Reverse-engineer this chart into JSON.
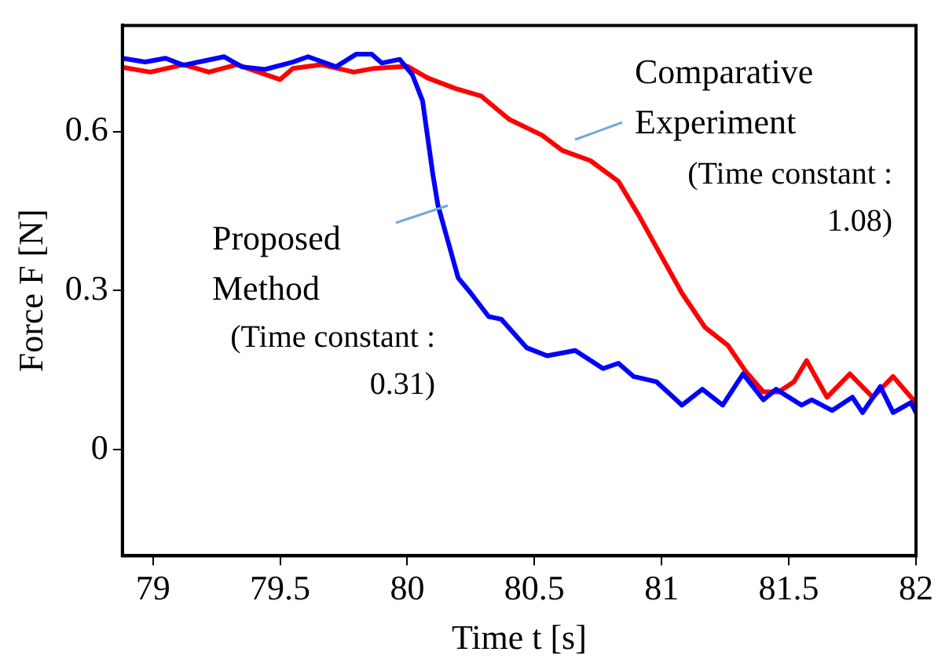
{
  "chart_data": {
    "type": "line",
    "xlabel": "Time t [s]",
    "ylabel": "Force F [N]",
    "xlim": [
      78.88,
      82
    ],
    "xticks": [
      79,
      79.5,
      80,
      80.5,
      81,
      81.5,
      82
    ],
    "ylim": [
      -0.2,
      0.8
    ],
    "yticks": [
      0,
      0.3,
      0.6
    ],
    "grid": false,
    "legend": false,
    "marker": "none",
    "line_style": "solid",
    "annotations": [
      "(Time constant : 0.31)",
      "(Time constant : 1.08)"
    ],
    "series": [
      {
        "name": "Proposed Method",
        "color": "#0000ff",
        "x": [
          78.88,
          78.97,
          79.05,
          79.12,
          79.28,
          79.35,
          79.44,
          79.55,
          79.61,
          79.72,
          79.8,
          79.86,
          79.9,
          79.97,
          80.02,
          80.06,
          80.1,
          80.12,
          80.16,
          80.2,
          80.25,
          80.32,
          80.37,
          80.47,
          80.55,
          80.66,
          80.77,
          80.83,
          80.89,
          80.98,
          81.08,
          81.16,
          81.24,
          81.32,
          81.4,
          81.45,
          81.55,
          81.59,
          81.67,
          81.75,
          81.79,
          81.86,
          81.91,
          81.98,
          82
        ],
        "values": [
          0.738,
          0.731,
          0.738,
          0.725,
          0.741,
          0.722,
          0.717,
          0.731,
          0.741,
          0.722,
          0.746,
          0.746,
          0.729,
          0.736,
          0.707,
          0.658,
          0.521,
          0.462,
          0.393,
          0.324,
          0.295,
          0.251,
          0.246,
          0.192,
          0.177,
          0.187,
          0.153,
          0.163,
          0.138,
          0.128,
          0.084,
          0.114,
          0.084,
          0.143,
          0.094,
          0.114,
          0.084,
          0.094,
          0.074,
          0.099,
          0.07,
          0.119,
          0.07,
          0.089,
          0.07
        ]
      },
      {
        "name": "Comparative Experiment",
        "color": "#ff0000",
        "x": [
          78.88,
          78.99,
          79.12,
          79.22,
          79.33,
          79.5,
          79.55,
          79.66,
          79.79,
          79.87,
          80.0,
          80.08,
          80.19,
          80.29,
          80.4,
          80.53,
          80.61,
          80.72,
          80.83,
          80.91,
          81.0,
          81.08,
          81.17,
          81.26,
          81.33,
          81.4,
          81.46,
          81.52,
          81.57,
          81.65,
          81.74,
          81.83,
          81.91,
          81.98,
          82
        ],
        "values": [
          0.721,
          0.712,
          0.726,
          0.712,
          0.726,
          0.698,
          0.719,
          0.726,
          0.712,
          0.719,
          0.723,
          0.701,
          0.681,
          0.667,
          0.623,
          0.593,
          0.564,
          0.545,
          0.506,
          0.442,
          0.364,
          0.295,
          0.231,
          0.197,
          0.148,
          0.109,
          0.109,
          0.128,
          0.168,
          0.099,
          0.143,
          0.099,
          0.138,
          0.099,
          0.089
        ]
      }
    ]
  }
}
